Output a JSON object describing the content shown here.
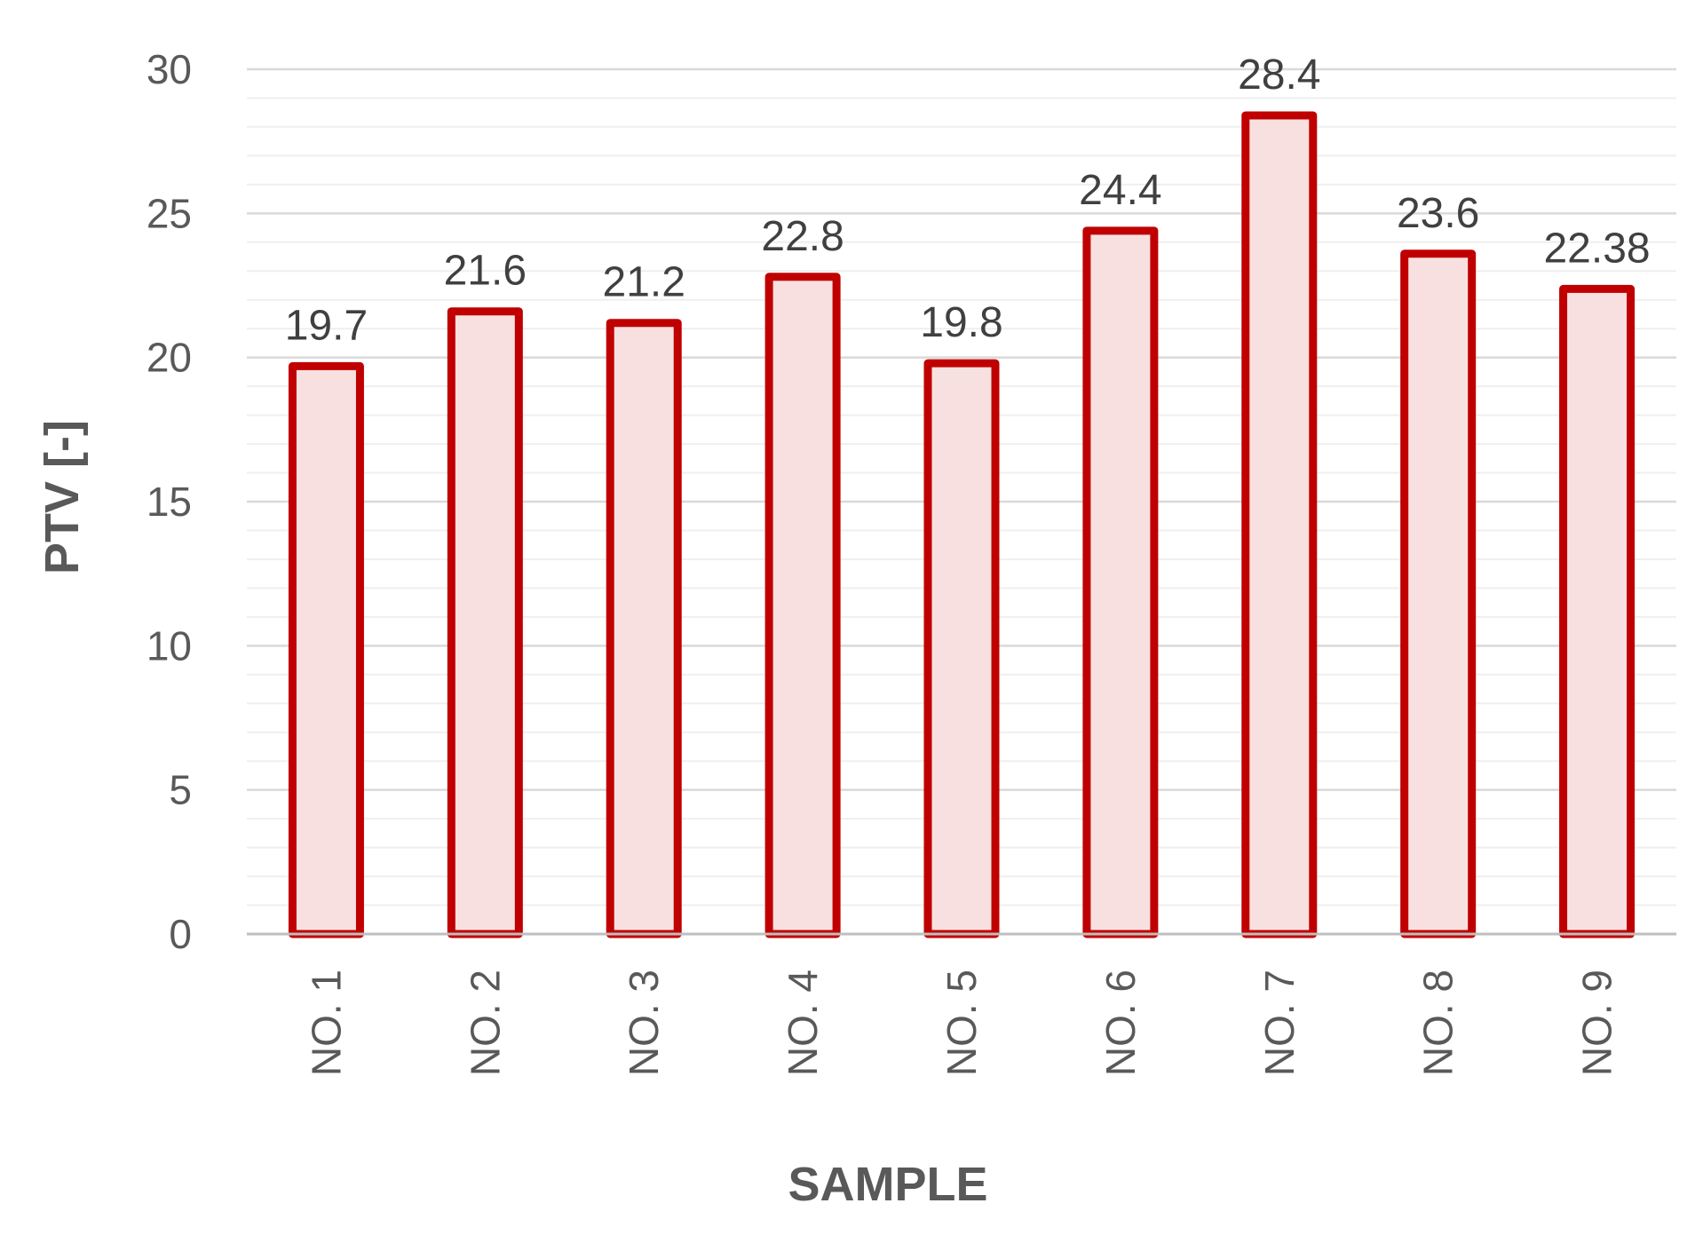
{
  "chart_data": {
    "type": "bar",
    "title": "",
    "xlabel": "SAMPLE",
    "ylabel": "PTV [-]",
    "categories": [
      "NO. 1",
      "NO. 2",
      "NO. 3",
      "NO. 4",
      "NO. 5",
      "NO. 6",
      "NO. 7",
      "NO. 8",
      "NO. 9"
    ],
    "values": [
      19.7,
      21.6,
      21.2,
      22.8,
      19.8,
      24.4,
      28.4,
      23.6,
      22.38
    ],
    "data_labels": [
      "19.7",
      "21.6",
      "21.2",
      "22.8",
      "19.8",
      "24.4",
      "28.4",
      "23.6",
      "22.38"
    ],
    "ylim": [
      0,
      30
    ],
    "yticks": [
      0,
      5,
      10,
      15,
      20,
      25,
      30
    ],
    "minor_grid_step": 1,
    "grid": true,
    "legend": "none",
    "colors": {
      "bar_fill": "#f8e0e0",
      "bar_stroke": "#c00000",
      "major_grid": "#d9d9d9",
      "minor_grid": "#efefef",
      "axis": "#bfbfbf"
    }
  }
}
